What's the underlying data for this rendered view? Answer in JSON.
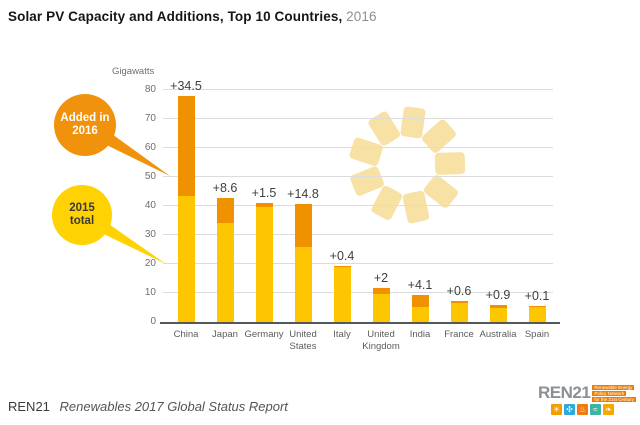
{
  "title": {
    "main": "Solar PV Capacity and Additions, Top 10 Countries,",
    "year": "2016"
  },
  "chart_data": {
    "type": "bar",
    "stacked": true,
    "title": "Solar PV Capacity and Additions, Top 10 Countries, 2016",
    "ylabel": "Gigawatts",
    "ylim": [
      0,
      80
    ],
    "yticks": [
      0,
      10,
      20,
      30,
      40,
      50,
      60,
      70,
      80
    ],
    "grid": "horizontal",
    "legend_position": "left-callouts",
    "categories": [
      "China",
      "Japan",
      "Germany",
      "United States",
      "Italy",
      "United Kingdom",
      "India",
      "France",
      "Australia",
      "Spain"
    ],
    "series": [
      {
        "name": "2015 total",
        "color": "#FEC600",
        "values": [
          43.5,
          34.2,
          39.7,
          25.9,
          18.9,
          9.7,
          5.1,
          6.6,
          5.0,
          5.4
        ]
      },
      {
        "name": "Added in 2016",
        "color": "#F09100",
        "values": [
          34.5,
          8.6,
          1.5,
          14.8,
          0.4,
          2.0,
          4.1,
          0.6,
          0.9,
          0.1
        ]
      }
    ],
    "bar_labels": [
      "+34.5",
      "+8.6",
      "+1.5",
      "+14.8",
      "+0.4",
      "+2",
      "+4.1",
      "+0.6",
      "+0.9",
      "+0.1"
    ]
  },
  "axis": {
    "unit_label": "Gigawatts"
  },
  "callouts": {
    "added": {
      "line1": "Added in",
      "line2": "2016",
      "color": "#F0920B"
    },
    "total": {
      "line1": "2015",
      "line2": "total",
      "color": "#FFD203"
    }
  },
  "footer": {
    "brand": "REN21",
    "report": "Renewables 2017 Global Status Report"
  },
  "logo": {
    "text": "REN21",
    "tagline": [
      "Renewable Energy",
      "Policy Network",
      "for the 21st Century"
    ],
    "icons": [
      {
        "name": "sun-icon",
        "glyph": "☀",
        "color": "#F59C00"
      },
      {
        "name": "wind-icon",
        "glyph": "✣",
        "color": "#2FA8DD"
      },
      {
        "name": "geothermal-icon",
        "glyph": "♨",
        "color": "#EF7B10"
      },
      {
        "name": "ocean-icon",
        "glyph": "≈",
        "color": "#3FB4A2"
      },
      {
        "name": "bioenergy-icon",
        "glyph": "❧",
        "color": "#F6A800"
      }
    ]
  },
  "colors": {
    "grid": "#dcdcdc",
    "axis": "#55585a",
    "sun_watermark": "#F8E1A4"
  }
}
